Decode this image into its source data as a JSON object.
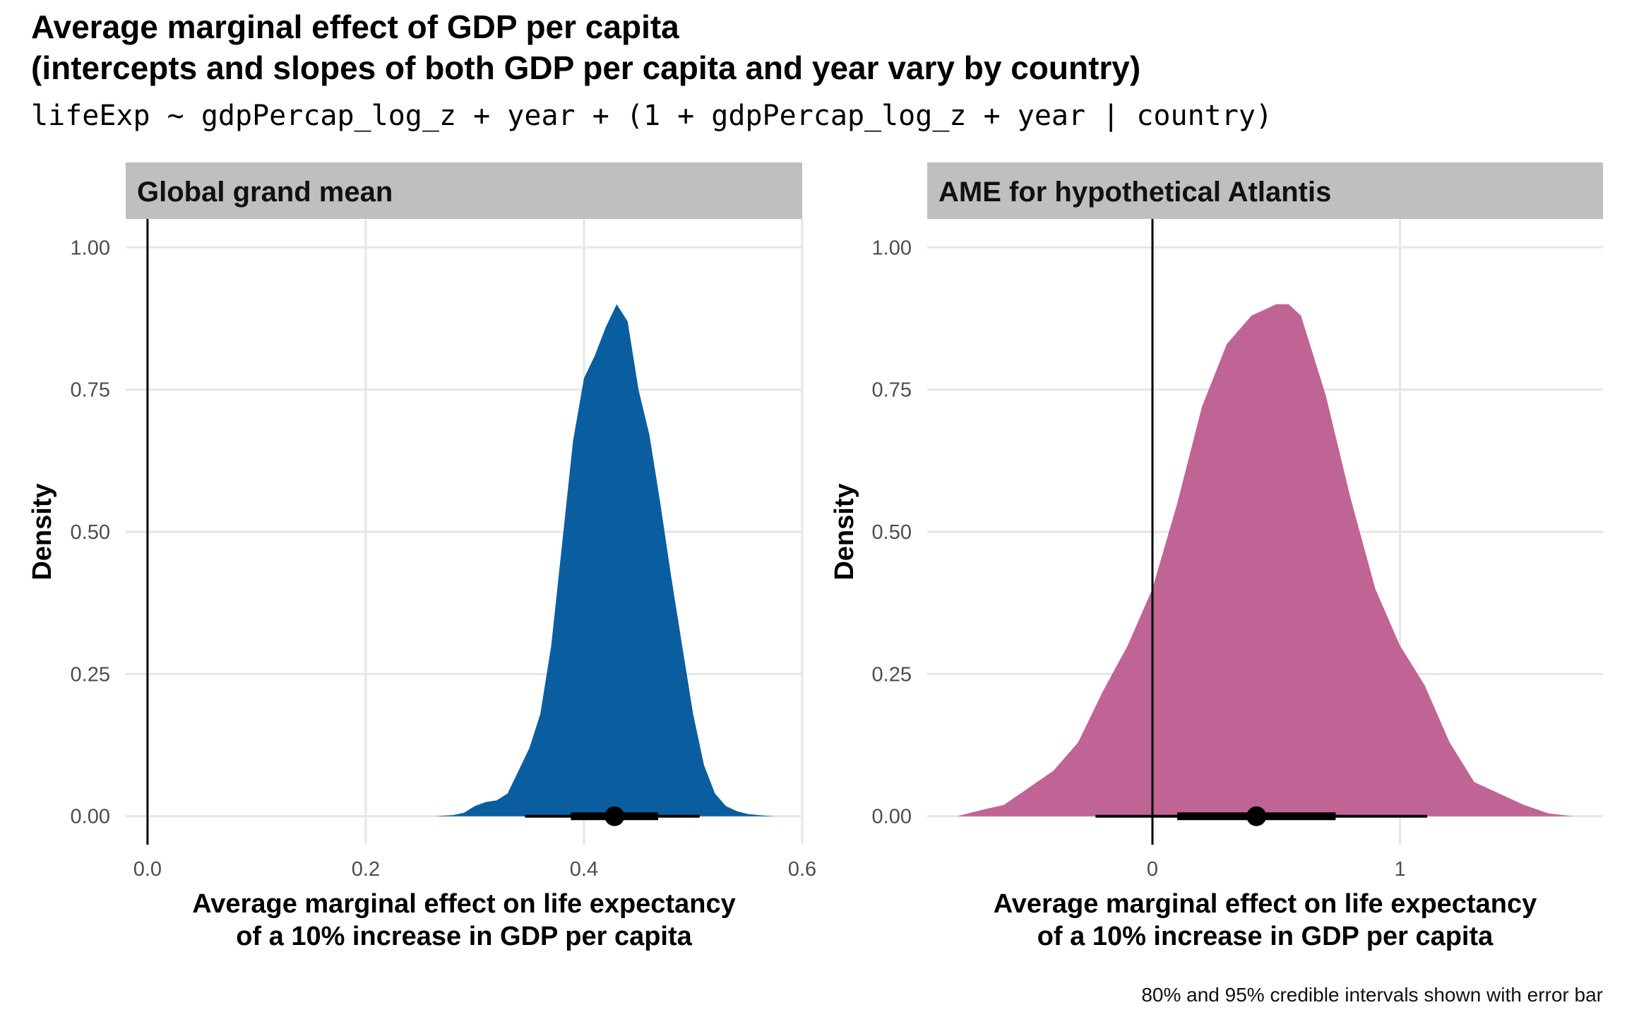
{
  "title_line1": "Average marginal effect of GDP per capita",
  "title_line2": "(intercepts and slopes of both GDP per capita and year vary by country)",
  "subtitle": "lifeExp ~ gdpPercap_log_z + year + (1 + gdpPercap_log_z + year | country)",
  "caption": "80% and 95% credible intervals shown with error bar",
  "chart_data": [
    {
      "type": "area",
      "panel_title": "Global grand mean",
      "xlabel_line1": "Average marginal effect on life expectancy",
      "xlabel_line2": "of a 10% increase in GDP per capita",
      "ylabel": "Density",
      "xlim": [
        -0.02,
        0.6
      ],
      "ylim": [
        -0.05,
        1.05
      ],
      "x_ticks": [
        0.0,
        0.2,
        0.4,
        0.6
      ],
      "x_tick_labels": [
        "0.0",
        "0.2",
        "0.4",
        "0.6"
      ],
      "y_ticks": [
        0.0,
        0.25,
        0.5,
        0.75,
        1.0
      ],
      "y_tick_labels": [
        "0.00",
        "0.25",
        "0.50",
        "0.75",
        "1.00"
      ],
      "fill_color": "#0A5EA0",
      "vline_x": 0,
      "grid": true,
      "density": {
        "x": [
          0.263,
          0.28,
          0.29,
          0.3,
          0.31,
          0.32,
          0.33,
          0.34,
          0.35,
          0.36,
          0.37,
          0.38,
          0.39,
          0.4,
          0.41,
          0.42,
          0.43,
          0.44,
          0.45,
          0.46,
          0.47,
          0.48,
          0.49,
          0.5,
          0.51,
          0.52,
          0.53,
          0.54,
          0.55,
          0.56,
          0.575
        ],
        "y": [
          0.0,
          0.002,
          0.006,
          0.018,
          0.025,
          0.028,
          0.04,
          0.08,
          0.12,
          0.18,
          0.3,
          0.48,
          0.66,
          0.77,
          0.81,
          0.86,
          0.9,
          0.87,
          0.75,
          0.67,
          0.55,
          0.42,
          0.3,
          0.18,
          0.09,
          0.04,
          0.018,
          0.009,
          0.004,
          0.002,
          0.0
        ]
      },
      "point": 0.428,
      "interval_80": [
        0.388,
        0.468
      ],
      "interval_95": [
        0.346,
        0.506
      ]
    },
    {
      "type": "area",
      "panel_title": "AME for hypothetical Atlantis",
      "xlabel_line1": "Average marginal effect on life expectancy",
      "xlabel_line2": "of a 10% increase in GDP per capita",
      "ylabel": "Density",
      "xlim": [
        -0.91,
        1.82
      ],
      "ylim": [
        -0.05,
        1.05
      ],
      "x_ticks": [
        0,
        1
      ],
      "x_tick_labels": [
        "0",
        "1"
      ],
      "y_ticks": [
        0.0,
        0.25,
        0.5,
        0.75,
        1.0
      ],
      "y_tick_labels": [
        "0.00",
        "0.25",
        "0.50",
        "0.75",
        "1.00"
      ],
      "fill_color": "#C06496",
      "vline_x": 0,
      "grid": true,
      "density": {
        "x": [
          -0.79,
          -0.7,
          -0.6,
          -0.5,
          -0.4,
          -0.3,
          -0.2,
          -0.1,
          0.0,
          0.1,
          0.2,
          0.3,
          0.4,
          0.5,
          0.55,
          0.6,
          0.7,
          0.8,
          0.9,
          1.0,
          1.1,
          1.2,
          1.3,
          1.4,
          1.5,
          1.6,
          1.7
        ],
        "y": [
          0.0,
          0.01,
          0.02,
          0.05,
          0.08,
          0.13,
          0.22,
          0.3,
          0.4,
          0.55,
          0.72,
          0.83,
          0.88,
          0.9,
          0.9,
          0.88,
          0.74,
          0.56,
          0.4,
          0.3,
          0.23,
          0.13,
          0.06,
          0.04,
          0.02,
          0.005,
          0.0
        ]
      },
      "point": 0.42,
      "interval_80": [
        0.1,
        0.74
      ],
      "interval_95": [
        -0.23,
        1.11
      ]
    }
  ]
}
